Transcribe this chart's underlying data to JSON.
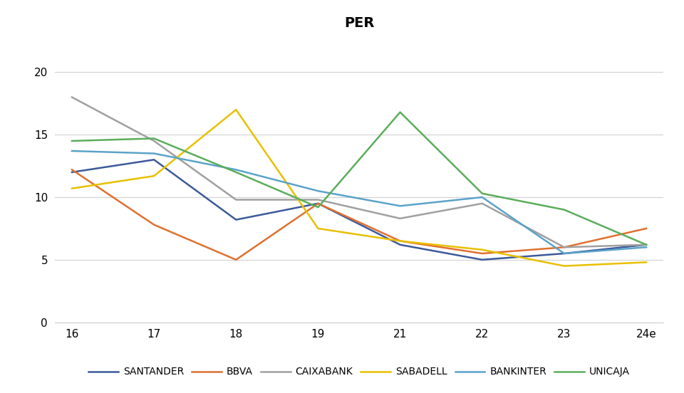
{
  "title": "PER",
  "x_labels": [
    "16",
    "17",
    "18",
    "19",
    "21",
    "22",
    "23",
    "24e"
  ],
  "series": {
    "SANTANDER": [
      12.0,
      13.0,
      8.2,
      9.5,
      6.2,
      5.0,
      5.5,
      6.2
    ],
    "BBVA": [
      12.2,
      7.8,
      5.0,
      9.5,
      6.5,
      5.5,
      6.0,
      7.5
    ],
    "CAIXABANK": [
      18.0,
      14.5,
      9.8,
      9.8,
      8.3,
      9.5,
      6.0,
      6.2
    ],
    "SABADELL": [
      10.7,
      11.7,
      17.0,
      7.5,
      6.5,
      5.8,
      4.5,
      4.8
    ],
    "BANKINTER": [
      13.7,
      13.5,
      12.2,
      10.5,
      9.3,
      10.0,
      5.5,
      6.0
    ],
    "UNICAJA": [
      14.5,
      14.7,
      12.0,
      9.2,
      16.8,
      10.3,
      9.0,
      6.2
    ]
  },
  "colors": {
    "SANTANDER": "#3C5A9A",
    "BBVA": "#E07030",
    "CAIXABANK": "#A0A0A0",
    "SABADELL": "#E8C000",
    "BANKINTER": "#5BA3C9",
    "UNICAJA": "#5BAD5B"
  },
  "ylim": [
    0,
    22
  ],
  "yticks": [
    0,
    5,
    10,
    15,
    20
  ],
  "background_color": "#FFFFFF",
  "title_fontsize": 14,
  "tick_fontsize": 11,
  "legend_fontsize": 10
}
